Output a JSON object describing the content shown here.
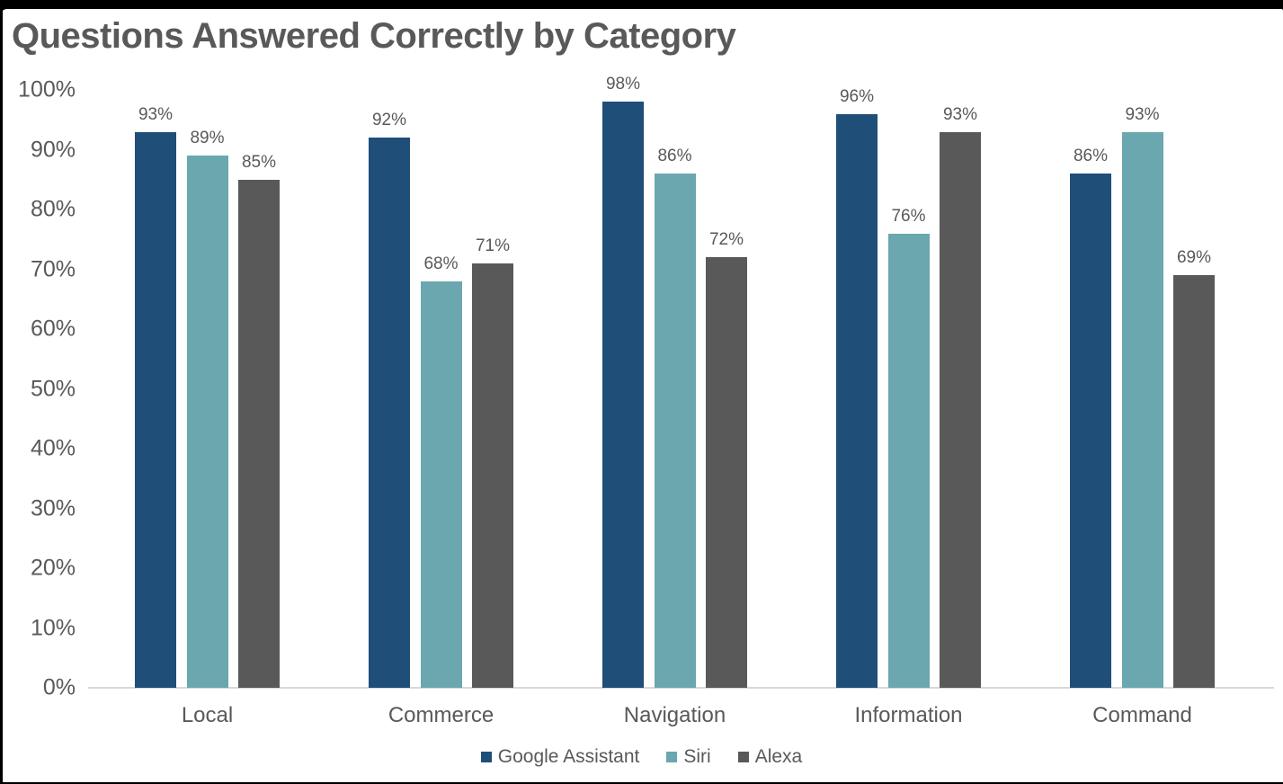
{
  "window": {
    "frame_color": "#000000",
    "background": "#FFFFFF"
  },
  "chart_data": {
    "type": "bar",
    "title": "Questions Answered Correctly by Category",
    "categories": [
      "Local",
      "Commerce",
      "Navigation",
      "Information",
      "Command"
    ],
    "series": [
      {
        "name": "Google Assistant",
        "color": "#1F4E79",
        "values": [
          93,
          92,
          98,
          96,
          86
        ]
      },
      {
        "name": "Siri",
        "color": "#6AA7AE",
        "values": [
          89,
          68,
          86,
          76,
          93
        ]
      },
      {
        "name": "Alexa",
        "color": "#595959",
        "values": [
          85,
          71,
          72,
          93,
          69
        ]
      }
    ],
    "value_label_suffix": "%",
    "y_axis": {
      "min": 0,
      "max": 100,
      "tick_step": 10,
      "tick_labels": [
        "0%",
        "10%",
        "20%",
        "30%",
        "40%",
        "50%",
        "60%",
        "70%",
        "80%",
        "90%",
        "100%"
      ]
    },
    "grid": false,
    "legend": {
      "position": "bottom",
      "entries": [
        "Google Assistant",
        "Siri",
        "Alexa"
      ]
    },
    "text_color": "#595959",
    "axis_line_color": "#D9D9D9"
  }
}
